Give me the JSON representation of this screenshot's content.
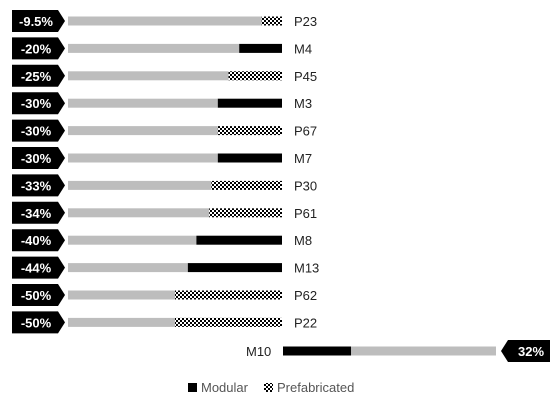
{
  "chart_data": {
    "type": "bar",
    "rows": [
      {
        "name": "P23",
        "pct_label": "-9.5%",
        "value": -9.5,
        "kind": "prefabricated"
      },
      {
        "name": "M4",
        "pct_label": "-20%",
        "value": -20,
        "kind": "modular"
      },
      {
        "name": "P45",
        "pct_label": "-25%",
        "value": -25,
        "kind": "prefabricated"
      },
      {
        "name": "M3",
        "pct_label": "-30%",
        "value": -30,
        "kind": "modular"
      },
      {
        "name": "P67",
        "pct_label": "-30%",
        "value": -30,
        "kind": "prefabricated"
      },
      {
        "name": "M7",
        "pct_label": "-30%",
        "value": -30,
        "kind": "modular"
      },
      {
        "name": "P30",
        "pct_label": "-33%",
        "value": -33,
        "kind": "prefabricated"
      },
      {
        "name": "P61",
        "pct_label": "-34%",
        "value": -34,
        "kind": "prefabricated"
      },
      {
        "name": "M8",
        "pct_label": "-40%",
        "value": -40,
        "kind": "modular"
      },
      {
        "name": "M13",
        "pct_label": "-44%",
        "value": -44,
        "kind": "modular"
      },
      {
        "name": "P62",
        "pct_label": "-50%",
        "value": -50,
        "kind": "prefabricated"
      },
      {
        "name": "P22",
        "pct_label": "-50%",
        "value": -50,
        "kind": "prefabricated"
      },
      {
        "name": "M10",
        "pct_label": "32%",
        "value": 32,
        "kind": "modular"
      }
    ],
    "baseline_share": 100,
    "legend": [
      {
        "label": "Modular",
        "kind": "modular"
      },
      {
        "label": "Prefabricated",
        "kind": "prefabricated"
      }
    ],
    "legend_position": "bottom",
    "colors": {
      "baseline": "#bdbdbd",
      "modular": "#000000",
      "prefabricated_pattern": "#000000",
      "badge": "#000000",
      "badge_text": "#ffffff",
      "text": "#222222"
    }
  }
}
